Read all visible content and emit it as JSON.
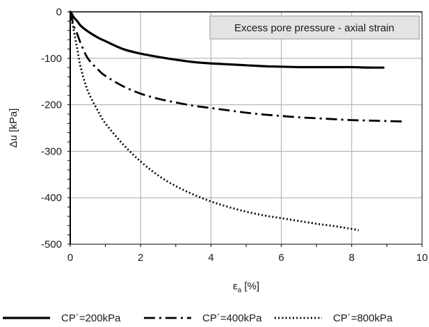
{
  "chart_data": {
    "type": "line",
    "title": "Excess pore pressure - axial strain",
    "xlabel": "εa [%]",
    "xlabel_main": "ε",
    "xlabel_sub": "a",
    "xlabel_unit": " [%]",
    "ylabel": "Δu [kPa]",
    "xlim": [
      0,
      10
    ],
    "ylim": [
      -500,
      0
    ],
    "xticks": [
      0,
      2,
      4,
      6,
      8,
      10
    ],
    "yticks": [
      0,
      -100,
      -200,
      -300,
      -400,
      -500
    ],
    "x_minor_step": 1,
    "y_minor_step": 20,
    "grid": true,
    "legend_position": "bottom",
    "series": [
      {
        "name": "CP´=200kPa",
        "style": "solid",
        "color": "#000000",
        "x": [
          0,
          0.05,
          0.1,
          0.2,
          0.3,
          0.5,
          0.8,
          1.0,
          1.5,
          2.0,
          2.5,
          3.0,
          3.5,
          4.0,
          4.5,
          5.0,
          5.5,
          6.0,
          6.5,
          7.0,
          7.5,
          8.0,
          8.5,
          8.9
        ],
        "y": [
          0,
          -5,
          -12,
          -20,
          -30,
          -42,
          -56,
          -63,
          -80,
          -90,
          -97,
          -103,
          -108,
          -111,
          -113,
          -115,
          -117,
          -118,
          -119,
          -119,
          -119,
          -119,
          -120,
          -120
        ]
      },
      {
        "name": "CP´=400kPa",
        "style": "dashdot",
        "color": "#000000",
        "x": [
          0,
          0.05,
          0.1,
          0.2,
          0.3,
          0.5,
          0.8,
          1.0,
          1.5,
          2.0,
          2.5,
          3.0,
          3.5,
          4.0,
          4.5,
          5.0,
          5.5,
          6.0,
          6.5,
          7.0,
          7.5,
          8.0,
          8.5,
          9.0,
          9.5
        ],
        "y": [
          0,
          -15,
          -30,
          -48,
          -68,
          -100,
          -125,
          -138,
          -160,
          -176,
          -187,
          -195,
          -202,
          -207,
          -212,
          -217,
          -221,
          -224,
          -227,
          -229,
          -231,
          -233,
          -234,
          -235,
          -236
        ]
      },
      {
        "name": "CP´=800kPa",
        "style": "dotted",
        "color": "#000000",
        "x": [
          0,
          0.05,
          0.1,
          0.2,
          0.3,
          0.5,
          0.8,
          1.0,
          1.5,
          2.0,
          2.5,
          3.0,
          3.5,
          4.0,
          4.5,
          5.0,
          5.5,
          6.0,
          6.5,
          7.0,
          7.5,
          8.0,
          8.2
        ],
        "y": [
          0,
          -20,
          -40,
          -80,
          -120,
          -170,
          -215,
          -240,
          -285,
          -322,
          -352,
          -375,
          -393,
          -408,
          -420,
          -430,
          -438,
          -444,
          -450,
          -456,
          -461,
          -467,
          -470
        ]
      }
    ]
  }
}
